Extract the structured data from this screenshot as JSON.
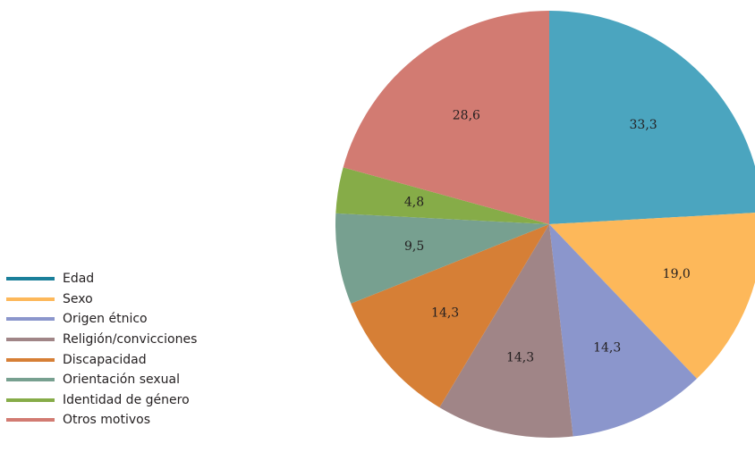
{
  "chart_data": {
    "type": "pie",
    "title": "",
    "legend_placement": "left-bottom",
    "slices": [
      {
        "label": "Edad",
        "value": 33.3,
        "value_label": "33,3",
        "color": "#4ba5bf",
        "legend_color": "#1a7f9a"
      },
      {
        "label": "Sexo",
        "value": 19.0,
        "value_label": "19,0",
        "color": "#fdb85a",
        "legend_color": "#fdb85a"
      },
      {
        "label": "Origen étnico",
        "value": 14.3,
        "value_label": "14,3",
        "color": "#8b96cc",
        "legend_color": "#8b96cc"
      },
      {
        "label": "Religión/convicciones",
        "value": 14.3,
        "value_label": "14,3",
        "color": "#a08587",
        "legend_color": "#a08587"
      },
      {
        "label": "Discapacidad",
        "value": 14.3,
        "value_label": "14,3",
        "color": "#d67f36",
        "legend_color": "#d67f36"
      },
      {
        "label": "Orientación sexual",
        "value": 9.5,
        "value_label": "9,5",
        "color": "#77a090",
        "legend_color": "#77a090"
      },
      {
        "label": "Identidad de género",
        "value": 4.8,
        "value_label": "4,8",
        "color": "#86ac48",
        "legend_color": "#86ac48"
      },
      {
        "label": "Otros motivos",
        "value": 28.6,
        "value_label": "28,6",
        "color": "#d27b72",
        "legend_color": "#d27b72"
      }
    ]
  }
}
